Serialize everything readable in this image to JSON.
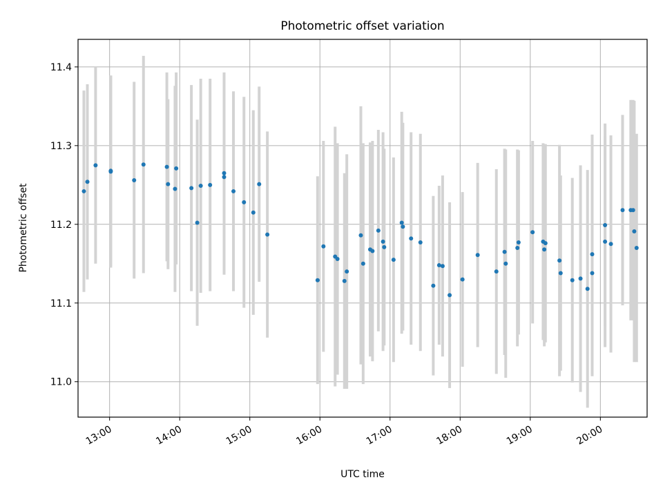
{
  "chart_data": {
    "type": "scatter",
    "title": "Photometric offset variation",
    "xlabel": "UTC time",
    "ylabel": "Photometric offset",
    "x_ticks": [
      "13:00",
      "14:00",
      "15:00",
      "16:00",
      "17:00",
      "18:00",
      "19:00",
      "20:00"
    ],
    "y_ticks": [
      "11.0",
      "11.1",
      "11.2",
      "11.3",
      "11.4"
    ],
    "xlim": [
      "12:33",
      "20:40"
    ],
    "ylim": [
      10.955,
      11.435
    ],
    "grid": true,
    "colors": {
      "point": "#1f77b4",
      "errorbar": "#d3d3d3",
      "grid": "#b0b0b0"
    },
    "series": [
      {
        "x": [
          "12:38",
          "12:41",
          "12:48",
          "13:01",
          "13:01",
          "13:21",
          "13:29",
          "13:49",
          "13:50",
          "13:56",
          "13:57",
          "14:10",
          "14:15",
          "14:18",
          "14:26",
          "14:38",
          "14:38",
          "14:46",
          "14:55",
          "15:03",
          "15:08",
          "15:15",
          "15:58",
          "16:03",
          "16:13",
          "16:15",
          "16:21",
          "16:23",
          "16:35",
          "16:37",
          "16:43",
          "16:45",
          "16:50",
          "16:54",
          "16:55",
          "17:03",
          "17:10",
          "17:11",
          "17:18",
          "17:26",
          "17:37",
          "17:42",
          "17:45",
          "17:51",
          "18:02",
          "18:15",
          "18:31",
          "18:38",
          "18:39",
          "18:49",
          "18:50",
          "19:02",
          "19:11",
          "19:12",
          "19:13",
          "19:25",
          "19:26",
          "19:36",
          "19:43",
          "19:49",
          "19:53",
          "19:53",
          "20:04",
          "20:04",
          "20:09",
          "20:19",
          "20:26",
          "20:28",
          "20:29",
          "20:31"
        ],
        "y": [
          11.242,
          11.254,
          11.275,
          11.267,
          11.268,
          11.256,
          11.276,
          11.273,
          11.251,
          11.245,
          11.271,
          11.246,
          11.202,
          11.249,
          11.25,
          11.265,
          11.26,
          11.242,
          11.228,
          11.215,
          11.251,
          11.187,
          11.129,
          11.172,
          11.159,
          11.156,
          11.128,
          11.14,
          11.186,
          11.15,
          11.168,
          11.166,
          11.192,
          11.178,
          11.171,
          11.155,
          11.202,
          11.197,
          11.182,
          11.177,
          11.122,
          11.148,
          11.147,
          11.11,
          11.13,
          11.161,
          11.14,
          11.165,
          11.15,
          11.17,
          11.177,
          11.19,
          11.178,
          11.168,
          11.176,
          11.154,
          11.138,
          11.129,
          11.131,
          11.118,
          11.138,
          11.162,
          11.178,
          11.199,
          11.175,
          11.218,
          11.218,
          11.218,
          11.191,
          11.17
        ],
        "yerr": [
          0.128,
          0.124,
          0.125,
          0.122,
          0.121,
          0.125,
          0.138,
          0.12,
          0.108,
          0.131,
          0.122,
          0.131,
          0.131,
          0.136,
          0.135,
          0.128,
          0.124,
          0.127,
          0.134,
          0.13,
          0.124,
          0.131,
          0.132,
          0.134,
          0.165,
          0.147,
          0.137,
          0.149,
          0.164,
          0.153,
          0.136,
          0.14,
          0.128,
          0.139,
          0.125,
          0.13,
          0.141,
          0.132,
          0.135,
          0.138,
          0.114,
          0.101,
          0.115,
          0.118,
          0.111,
          0.117,
          0.13,
          0.131,
          0.145,
          0.125,
          0.117,
          0.116,
          0.125,
          0.123,
          0.126,
          0.147,
          0.124,
          0.13,
          0.144,
          0.151,
          0.131,
          0.152,
          0.134,
          0.129,
          0.138,
          0.121,
          0.14,
          0.14,
          0.166,
          0.145
        ]
      }
    ]
  }
}
